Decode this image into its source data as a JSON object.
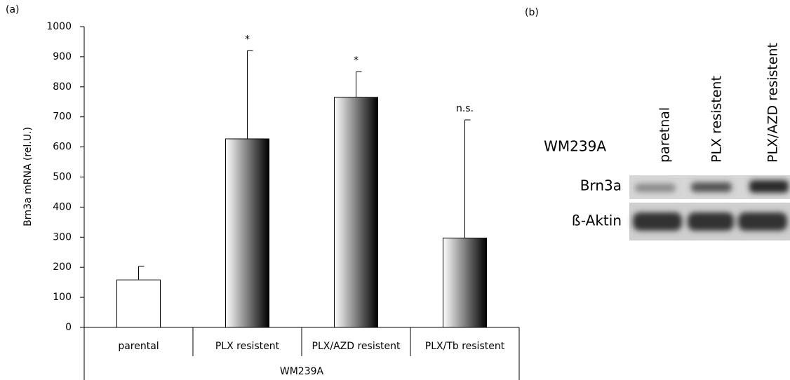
{
  "chart_data": {
    "type": "bar",
    "panel_label": "(a)",
    "ylabel": "Brn3a mRNA (rel.U.)",
    "group_label": "WM239A",
    "categories": [
      "parental",
      "PLX resistent",
      "PLX/AZD resistent",
      "PLX/Tb resistent"
    ],
    "values": [
      158,
      627,
      765,
      297
    ],
    "errors": [
      45,
      293,
      85,
      393
    ],
    "annotations": [
      null,
      "*",
      "*",
      "n.s."
    ],
    "colors": [
      "#ffffff",
      "gradient",
      "gradient",
      "gradient"
    ],
    "gradient": [
      "#ffffff",
      "#000000"
    ],
    "ylim": [
      0,
      1000
    ],
    "yticks": [
      0,
      100,
      200,
      300,
      400,
      500,
      600,
      700,
      800,
      900,
      1000
    ],
    "grid": false
  },
  "blot": {
    "panel_label": "(b)",
    "cell_line": "WM239A",
    "lanes": [
      "paretnal",
      "PLX resistent",
      "PLX/AZD resistent"
    ],
    "rows": [
      "Brn3a",
      "ß-Aktin"
    ]
  }
}
